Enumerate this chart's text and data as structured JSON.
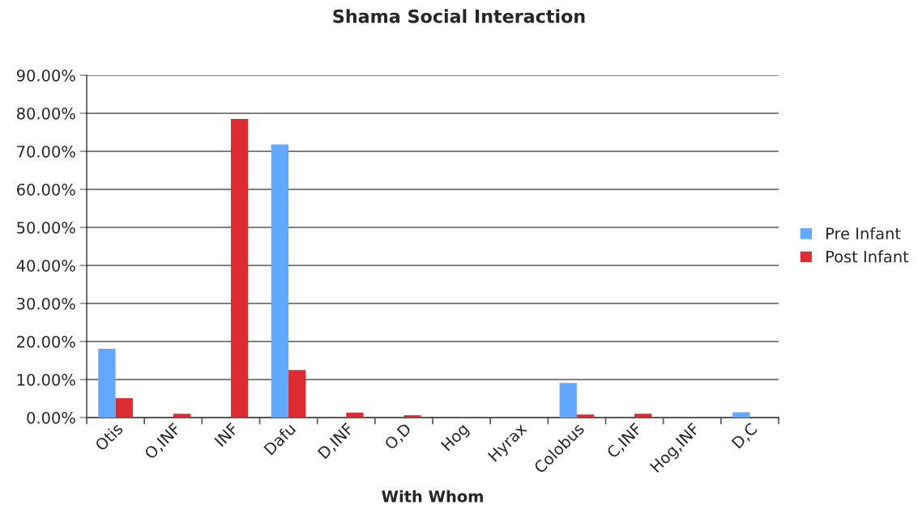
{
  "chart_data": {
    "type": "bar",
    "title": "Shama Social Interaction",
    "xlabel": "With Whom",
    "categories": [
      "Otis",
      "O,INF",
      "INF",
      "Dafu",
      "D,INF",
      "O,D",
      "Hog",
      "Hyrax",
      "Colobus",
      "C,INF",
      "Hog,INF",
      "D,C"
    ],
    "series": [
      {
        "name": "Pre Infant",
        "color": "#63a8ff",
        "values": [
          18.1,
          null,
          null,
          71.8,
          null,
          null,
          null,
          null,
          9.1,
          null,
          null,
          1.4
        ]
      },
      {
        "name": "Post Infant",
        "color": "#dc2c32",
        "values": [
          5.1,
          1.0,
          78.5,
          12.5,
          1.3,
          0.6,
          null,
          null,
          0.8,
          1.0,
          null,
          null
        ]
      }
    ],
    "ylim": [
      0,
      90
    ],
    "yticks": [
      {
        "value": 0,
        "label": "0.00%"
      },
      {
        "value": 10,
        "label": "10.00%"
      },
      {
        "value": 20,
        "label": "20.00%"
      },
      {
        "value": 30,
        "label": "30.00%"
      },
      {
        "value": 40,
        "label": "40.00%"
      },
      {
        "value": 50,
        "label": "50.00%"
      },
      {
        "value": 60,
        "label": "60.00%"
      },
      {
        "value": 70,
        "label": "70.00%"
      },
      {
        "value": 80,
        "label": "80.00%"
      },
      {
        "value": 90,
        "label": "90.00%"
      }
    ],
    "grid": "y",
    "legend": "right"
  }
}
